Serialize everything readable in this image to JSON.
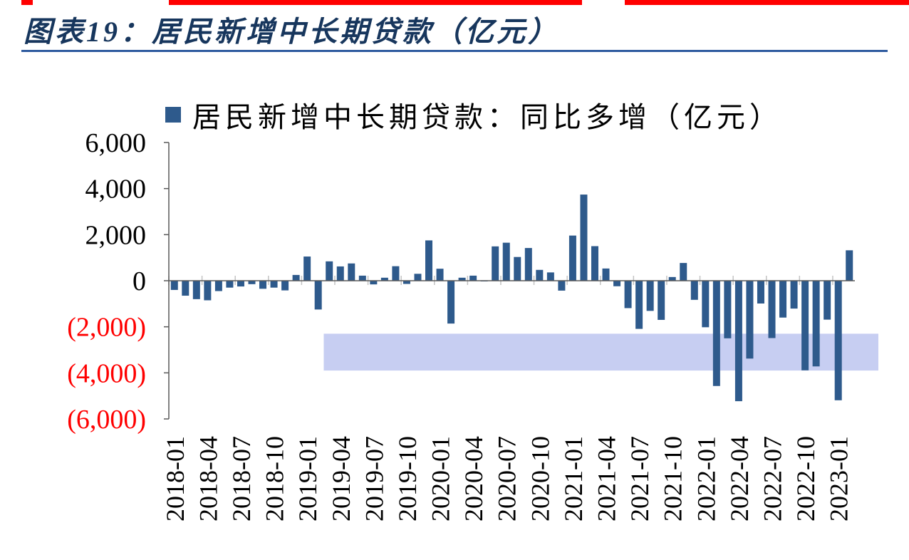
{
  "page": {
    "background": "#FFFFFF",
    "top_strip_color": "#FF0000",
    "top_strip_segments": [
      [
        30,
        46
      ],
      [
        237,
        817
      ],
      [
        877,
        1276
      ]
    ]
  },
  "header": {
    "title": "图表19：居民新增中长期贷款（亿元）",
    "title_color": "#17365D",
    "rule_color": "#2E5B9F"
  },
  "chart_data": {
    "type": "bar",
    "title": "图表19：居民新增中长期贷款（亿元）",
    "legend": "居民新增中长期贷款：同比多增（亿元）",
    "legend_position": "top",
    "grid": false,
    "bar_color": "#2E5A8C",
    "axis_color": "#595959",
    "category_tick_color": "#C3C3C3",
    "negative_label_color": "#FF0000",
    "positive_label_color": "#000000",
    "ylim": [
      -6000,
      6000
    ],
    "y_ticks": [
      6000,
      4000,
      2000,
      0,
      -2000,
      -4000,
      -6000
    ],
    "y_tick_labels": [
      "6,000",
      "4,000",
      "2,000",
      "0",
      "(2,000)",
      "(4,000)",
      "(6,000)"
    ],
    "x": [
      "2018-01",
      "2018-02",
      "2018-03",
      "2018-04",
      "2018-05",
      "2018-06",
      "2018-07",
      "2018-08",
      "2018-09",
      "2018-10",
      "2018-11",
      "2018-12",
      "2019-01",
      "2019-02",
      "2019-03",
      "2019-04",
      "2019-05",
      "2019-06",
      "2019-07",
      "2019-08",
      "2019-09",
      "2019-10",
      "2019-11",
      "2019-12",
      "2020-01",
      "2020-02",
      "2020-03",
      "2020-04",
      "2020-05",
      "2020-06",
      "2020-07",
      "2020-08",
      "2020-09",
      "2020-10",
      "2020-11",
      "2020-12",
      "2021-01",
      "2021-02",
      "2021-03",
      "2021-04",
      "2021-05",
      "2021-06",
      "2021-07",
      "2021-08",
      "2021-09",
      "2021-10",
      "2021-11",
      "2021-12",
      "2022-01",
      "2022-02",
      "2022-03",
      "2022-04",
      "2022-05",
      "2022-06",
      "2022-07",
      "2022-08",
      "2022-09",
      "2022-10",
      "2022-11",
      "2022-12",
      "2023-01",
      "2023-02"
    ],
    "values": [
      -400,
      -650,
      -800,
      -850,
      -450,
      -300,
      -250,
      -150,
      -350,
      -300,
      -420,
      250,
      1050,
      -1250,
      840,
      620,
      750,
      220,
      -160,
      130,
      630,
      -140,
      300,
      1750,
      520,
      -1860,
      130,
      220,
      -20,
      1490,
      1650,
      1030,
      1420,
      470,
      360,
      -430,
      1960,
      3740,
      1500,
      530,
      -240,
      -1190,
      -2090,
      -1310,
      -1700,
      160,
      770,
      -830,
      -2020,
      -4570,
      -2500,
      -5230,
      -3380,
      -990,
      -2490,
      -1600,
      -1210,
      -3890,
      -3720,
      -1690,
      -5190,
      1320
    ],
    "x_tick_labels": [
      "2018-01",
      "2018-04",
      "2018-07",
      "2018-10",
      "2019-01",
      "2019-04",
      "2019-07",
      "2019-10",
      "2020-01",
      "2020-04",
      "2020-07",
      "2020-10",
      "2021-01",
      "2021-04",
      "2021-07",
      "2021-10",
      "2022-01",
      "2022-04",
      "2022-07",
      "2022-10",
      "2023-01"
    ],
    "highlight_band": {
      "color": "#C7CEF2",
      "value_top": -2300,
      "value_bottom": -3900,
      "start_month": "2019-03",
      "extends_past_end": true
    }
  }
}
